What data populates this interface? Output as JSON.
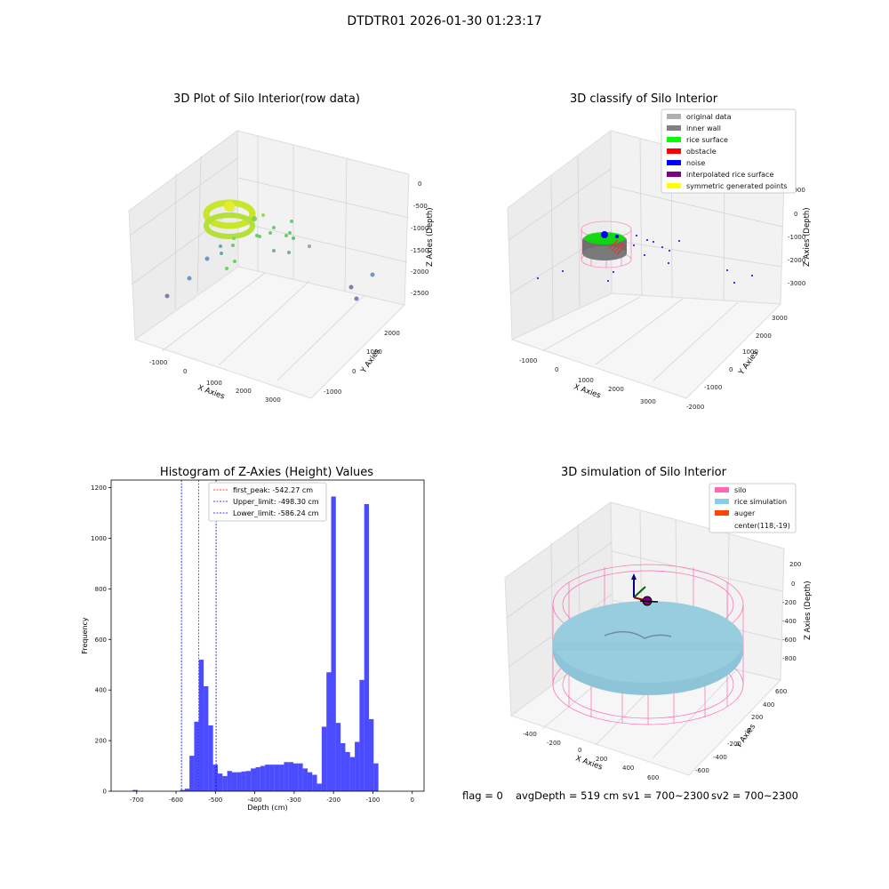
{
  "window": {
    "suptitle": "DTDTR01 2026-01-30 01:23:17"
  },
  "panels": {
    "raw": {
      "title": "3D Plot of Silo Interior(row data)",
      "xlabel": "X Axies",
      "ylabel": "Y Axies",
      "zlabel": "Z Axies (Depth)",
      "xticks": [
        "-1000",
        "0",
        "1000",
        "2000",
        "3000"
      ],
      "yticks": [
        "-1000",
        "0",
        "1000",
        "2000"
      ],
      "zticks": [
        "0",
        "-500",
        "-1000",
        "-1500",
        "-2000",
        "-2500"
      ]
    },
    "classify": {
      "title": "3D classify of Silo Interior",
      "xlabel": "X Axies",
      "ylabel": "Y Axies",
      "zlabel": "Z Axies (Depth)",
      "xticks": [
        "-1000",
        "0",
        "1000",
        "2000",
        "3000"
      ],
      "yticks": [
        "-2000",
        "-1000",
        "0",
        "1000",
        "2000",
        "3000"
      ],
      "zticks": [
        "1000",
        "0",
        "-1000",
        "-2000",
        "-3000"
      ],
      "legend": [
        {
          "label": "original data",
          "color": "#b0b0b0"
        },
        {
          "label": "inner wall",
          "color": "#808080"
        },
        {
          "label": "rice surface",
          "color": "#00ff00"
        },
        {
          "label": "obstacle",
          "color": "#ff0000"
        },
        {
          "label": "noise",
          "color": "#0000ff"
        },
        {
          "label": "interpolated rice surface",
          "color": "#800080"
        },
        {
          "label": "symmetric generated points",
          "color": "#ffff00"
        }
      ]
    },
    "sim": {
      "title": "3D simulation of Silo Interior",
      "xlabel": "X Axies",
      "ylabel": "Y Axies",
      "zlabel": "Z Axies (Depth)",
      "xticks": [
        "-400",
        "-200",
        "0",
        "200",
        "400",
        "600"
      ],
      "yticks": [
        "-600",
        "-400",
        "-200",
        "0",
        "200",
        "400",
        "600"
      ],
      "zticks": [
        "200",
        "0",
        "-200",
        "-400",
        "-600",
        "-800"
      ],
      "legend": [
        {
          "label": "silo",
          "color": "#ff69b4"
        },
        {
          "label": "rice simulation",
          "color": "#87ceeb"
        },
        {
          "label": "auger",
          "color": "#ff4500"
        },
        {
          "label": "center(118,-19)",
          "color": ""
        }
      ]
    }
  },
  "chart_data": [
    {
      "type": "bar",
      "title": "Histogram of Z-Axies (Height) Values",
      "xlabel": "Depth (cm)",
      "ylabel": "Frequency",
      "xlim": [
        -765,
        30
      ],
      "ylim": [
        0,
        1230
      ],
      "xticks": [
        -700,
        -600,
        -500,
        -400,
        -300,
        -200,
        -100,
        0
      ],
      "yticks": [
        0,
        200,
        400,
        600,
        800,
        1000,
        1200
      ],
      "bar_color": "#0000ff",
      "bin_width": 12,
      "bin_lefts": [
        -710,
        -590,
        -578,
        -566,
        -554,
        -542,
        -530,
        -518,
        -506,
        -494,
        -482,
        -470,
        -458,
        -446,
        -434,
        -422,
        -410,
        -398,
        -386,
        -374,
        -362,
        -350,
        -338,
        -326,
        -314,
        -302,
        -290,
        -278,
        -266,
        -254,
        -242,
        -230,
        -218,
        -206,
        -194,
        -182,
        -170,
        -158,
        -146,
        -134,
        -122,
        -110,
        -98,
        -86,
        -74,
        -62,
        -50,
        -38,
        -26,
        -14
      ],
      "values": [
        5,
        5,
        10,
        140,
        275,
        520,
        415,
        260,
        105,
        70,
        60,
        80,
        75,
        75,
        78,
        80,
        90,
        95,
        100,
        105,
        105,
        105,
        105,
        115,
        115,
        110,
        110,
        90,
        75,
        65,
        30,
        255,
        470,
        1165,
        270,
        190,
        155,
        135,
        195,
        440,
        1135,
        285,
        110,
        0,
        0,
        0,
        0,
        0,
        0,
        0
      ],
      "lines": [
        {
          "name": "first_peak: -542.27 cm",
          "x": -542.27,
          "color": "#ff0000"
        },
        {
          "name": "Upper_limit: -498.30 cm",
          "x": -498.3,
          "color": "#0000ff"
        },
        {
          "name": "Lower_limit: -586.24 cm",
          "x": -586.24,
          "color": "#0000ff"
        }
      ]
    }
  ],
  "footer": {
    "flag": "flag = 0",
    "avg": "avgDepth = 519 cm",
    "sv1": "sv1 = 700~2300",
    "sv2": "sv2 = 700~2300"
  }
}
